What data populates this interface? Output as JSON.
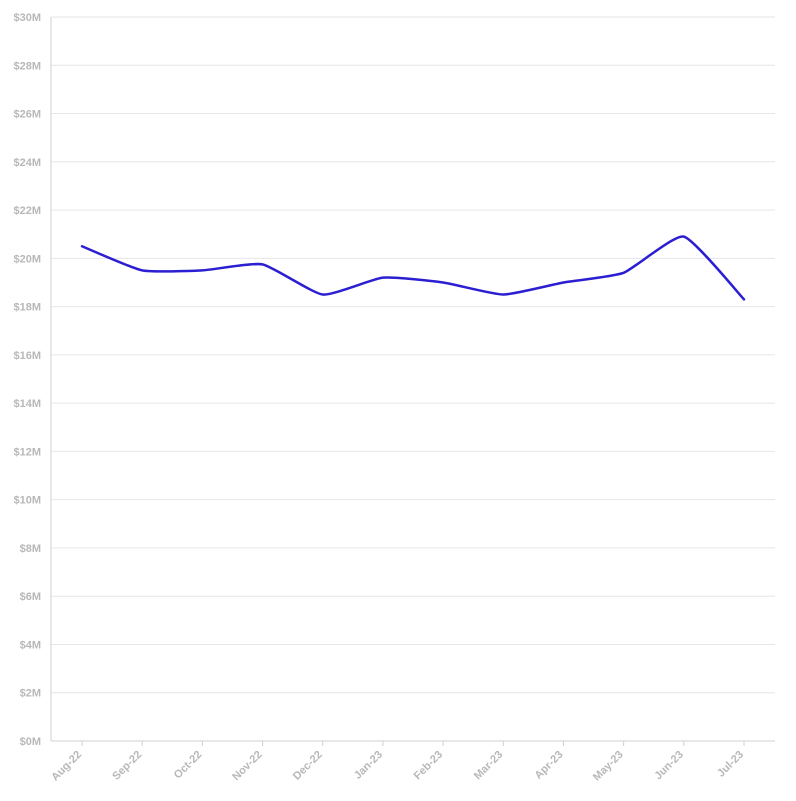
{
  "chart_data": {
    "type": "line",
    "title": "",
    "xlabel": "",
    "ylabel": "",
    "categories": [
      "Aug-22",
      "Sep-22",
      "Oct-22",
      "Nov-22",
      "Dec-22",
      "Jan-23",
      "Feb-23",
      "Mar-23",
      "Apr-23",
      "May-23",
      "Jun-23",
      "Jul-23"
    ],
    "series": [
      {
        "values": [
          20.5,
          19.5,
          19.5,
          19.75,
          18.5,
          19.2,
          19.0,
          18.5,
          19.0,
          19.4,
          20.9,
          18.3
        ]
      }
    ],
    "ylim": [
      0,
      30
    ],
    "y_ticks": [
      0,
      2,
      4,
      6,
      8,
      10,
      12,
      14,
      16,
      18,
      20,
      22,
      24,
      26,
      28,
      30
    ],
    "y_tick_labels": [
      "$0M",
      "$2M",
      "$4M",
      "$6M",
      "$8M",
      "$10M",
      "$12M",
      "$14M",
      "$16M",
      "$18M",
      "$20M",
      "$22M",
      "$24M",
      "$26M",
      "$28M",
      "$30M"
    ],
    "grid": true,
    "line_color": "#2b1fd1"
  }
}
